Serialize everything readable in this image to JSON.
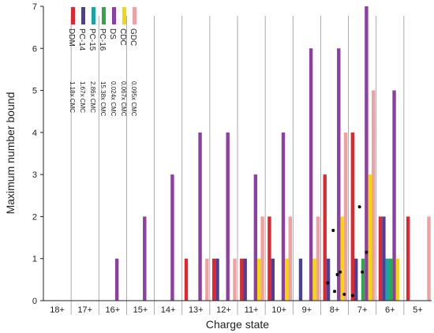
{
  "chart_data": {
    "type": "bar",
    "xlabel": "Charge state",
    "ylabel": "Maximum number bound",
    "ylim": [
      0,
      7
    ],
    "yticks": [
      "0",
      "1",
      "2",
      "3",
      "4",
      "5",
      "6",
      "7"
    ],
    "categories": [
      "18+",
      "17+",
      "16+",
      "15+",
      "14+",
      "13+",
      "12+",
      "11+",
      "10+",
      "9+",
      "8+",
      "7+",
      "6+",
      "5+"
    ],
    "grid": "vertical separators between charge states",
    "legend_placement": "top-left, rotated",
    "series": [
      {
        "name": "DDM",
        "cmc": "1.18x CMC",
        "color": "#e0262e",
        "values": [
          0,
          0,
          0,
          0,
          0,
          1,
          1,
          1,
          2,
          0,
          3,
          4,
          2,
          2
        ]
      },
      {
        "name": "PC-14",
        "cmc": "1.67x CMC",
        "color": "#4b3f97",
        "values": [
          0,
          0,
          0,
          0,
          0,
          0,
          1,
          1,
          1,
          1,
          1,
          1,
          2,
          0
        ]
      },
      {
        "name": "PC-15",
        "cmc": "2.86x CMC",
        "color": "#17a6a6",
        "values": [
          0,
          0,
          0,
          0,
          0,
          0,
          0,
          0,
          0,
          0,
          0,
          0,
          1,
          0
        ]
      },
      {
        "name": "PC-16",
        "cmc": "15.38x CMC",
        "color": "#2ea84a",
        "values": [
          0,
          0,
          0,
          0,
          0,
          0,
          0,
          0,
          0,
          0,
          0,
          1,
          1,
          0
        ]
      },
      {
        "name": "DS",
        "cmc": "0.024x CMC",
        "color": "#8e3fa2",
        "values": [
          0,
          0,
          1,
          2,
          3,
          4,
          4,
          3,
          4,
          6,
          6,
          7,
          5,
          0
        ]
      },
      {
        "name": "CDC",
        "cmc": "0.067x CMC",
        "color": "#f5d800",
        "values": [
          0,
          0,
          0,
          0,
          0,
          0,
          0,
          1,
          1,
          1,
          2,
          3,
          1,
          0
        ]
      },
      {
        "name": "GDC",
        "cmc": "0.095x CMC",
        "color": "#f0a0a0",
        "values": [
          0,
          0,
          0,
          0,
          0,
          1,
          1,
          2,
          2,
          2,
          4,
          5,
          0,
          2
        ]
      }
    ],
    "markers": [
      {
        "category": "8+",
        "offset": -0.25,
        "y": 0.42
      },
      {
        "category": "8+",
        "offset": -0.05,
        "y": 1.67
      },
      {
        "category": "8+",
        "offset": 0.0,
        "y": 0.22
      },
      {
        "category": "8+",
        "offset": 0.1,
        "y": 0.62
      },
      {
        "category": "8+",
        "offset": 0.2,
        "y": 0.68
      },
      {
        "category": "8+",
        "offset": 0.35,
        "y": 0.15
      },
      {
        "category": "7+",
        "offset": -0.35,
        "y": 0.12
      },
      {
        "category": "7+",
        "offset": -0.1,
        "y": 2.23
      },
      {
        "category": "7+",
        "offset": 0.0,
        "y": 0.68
      },
      {
        "category": "7+",
        "offset": 0.15,
        "y": 1.15
      }
    ]
  }
}
